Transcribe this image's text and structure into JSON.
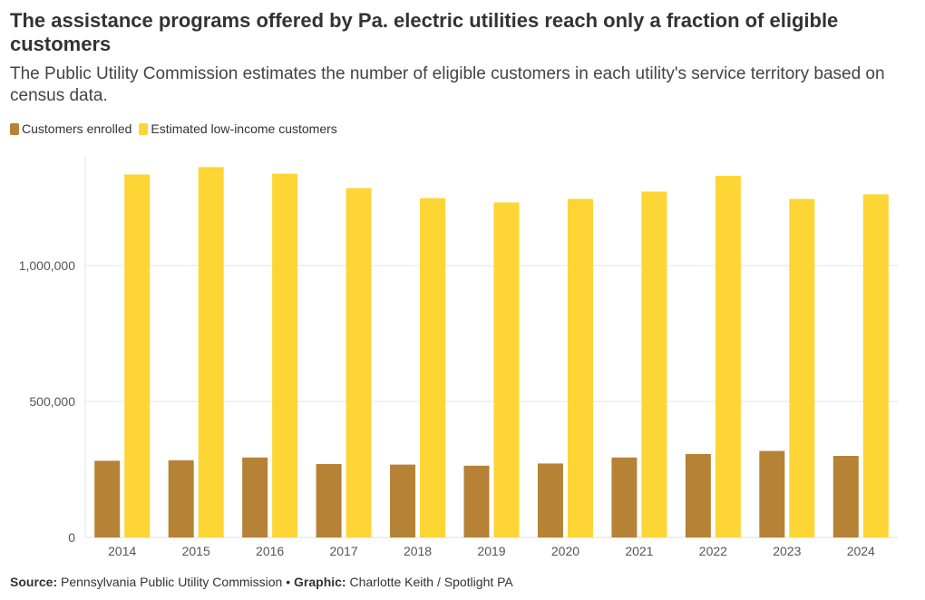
{
  "header": {
    "title": "The assistance programs offered by Pa. electric utilities reach only a fraction of eligible customers",
    "subtitle": "The Public Utility Commission estimates the number of eligible customers in each utility's service territory based on census data."
  },
  "footer": {
    "source_label": "Source:",
    "source_text": "Pennsylvania Public Utility Commission",
    "separator": "•",
    "graphic_label": "Graphic:",
    "graphic_text": "Charlotte Keith / Spotlight PA"
  },
  "chart_data": {
    "type": "bar",
    "categories": [
      "2014",
      "2015",
      "2016",
      "2017",
      "2018",
      "2019",
      "2020",
      "2021",
      "2022",
      "2023",
      "2024"
    ],
    "series": [
      {
        "name": "Customers enrolled",
        "color": "#b58236",
        "values": [
          282000,
          284000,
          294000,
          270000,
          268000,
          264000,
          272000,
          294000,
          307000,
          318000,
          300000
        ]
      },
      {
        "name": "Estimated low-income customers",
        "color": "#fdd535",
        "values": [
          1335000,
          1362000,
          1338000,
          1285000,
          1248000,
          1232000,
          1245000,
          1272000,
          1330000,
          1245000,
          1262000
        ]
      }
    ],
    "yticks": [
      0,
      500000,
      1000000
    ],
    "ytick_labels": [
      "0",
      "500,000",
      "1,000,000"
    ],
    "ylim": [
      0,
      1400000
    ],
    "grid": true,
    "legend_position": "top-left"
  }
}
